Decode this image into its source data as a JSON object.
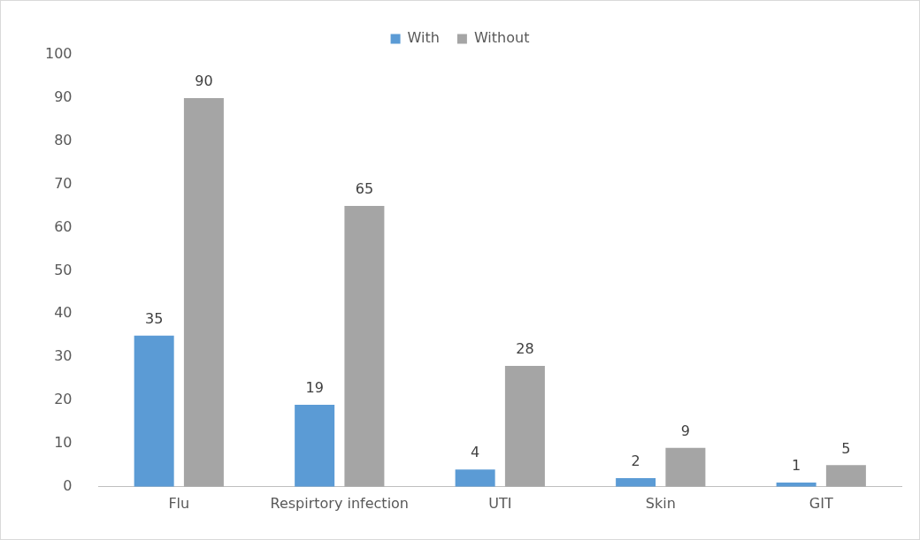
{
  "chart_data": {
    "type": "bar",
    "categories": [
      "Flu",
      "Respirtory infection",
      "UTI",
      "Skin",
      "GIT"
    ],
    "series": [
      {
        "name": "With",
        "color": "#5b9bd5",
        "values": [
          35,
          19,
          4,
          2,
          1
        ]
      },
      {
        "name": "Without",
        "color": "#a5a5a5",
        "values": [
          90,
          65,
          28,
          9,
          5
        ]
      }
    ],
    "ylim": [
      0,
      100
    ],
    "yticks": [
      0,
      10,
      20,
      30,
      40,
      50,
      60,
      70,
      80,
      90,
      100
    ],
    "grid": false,
    "legend": "top",
    "data_labels": true
  }
}
